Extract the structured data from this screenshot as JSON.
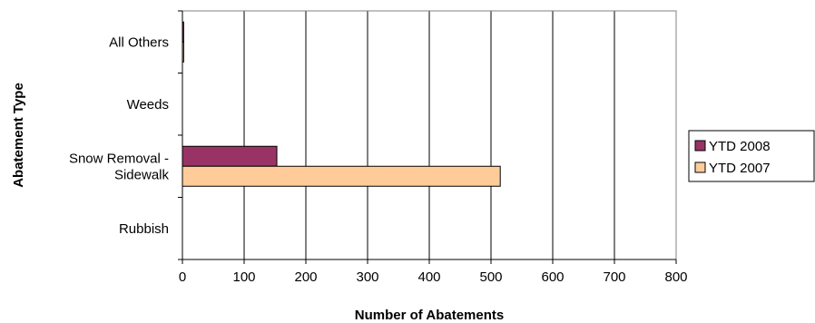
{
  "chart_data": {
    "type": "bar",
    "orientation": "horizontal",
    "categories": [
      "All Others",
      "Weeds",
      "Snow Removal - Sidewalk",
      "Rubbish"
    ],
    "category_lines": [
      [
        "All Others"
      ],
      [
        "Weeds"
      ],
      [
        "Snow Removal -",
        "Sidewalk"
      ],
      [
        "Rubbish"
      ]
    ],
    "series": [
      {
        "name": "YTD 2008",
        "color": "#993366",
        "values": [
          2,
          0,
          153,
          0
        ]
      },
      {
        "name": "YTD 2007",
        "color": "#FFCC99",
        "values": [
          2,
          0,
          515,
          0
        ]
      }
    ],
    "xlabel": "Number of Abatements",
    "ylabel": "Abatement Type",
    "xlim": [
      0,
      800
    ],
    "xticks": [
      0,
      100,
      200,
      300,
      400,
      500,
      600,
      700,
      800
    ],
    "grid": "vertical",
    "legend": "right"
  }
}
